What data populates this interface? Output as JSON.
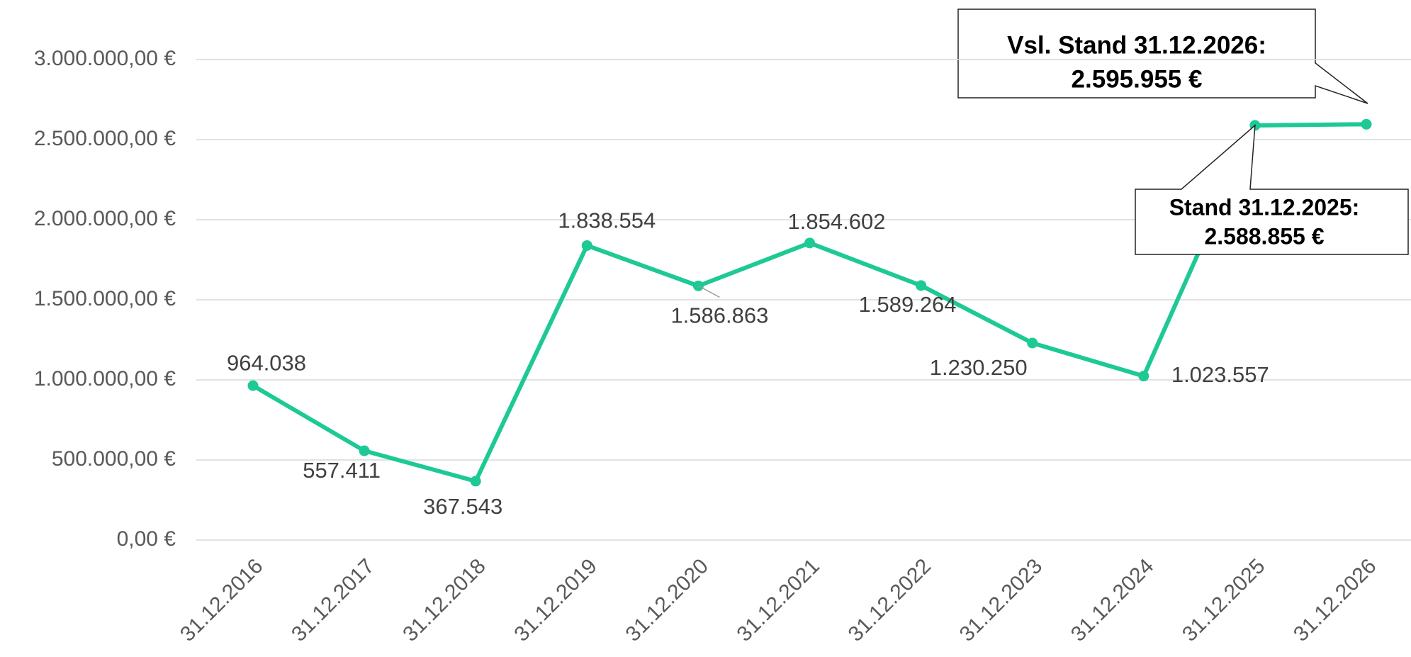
{
  "chart_data": {
    "type": "line",
    "categories": [
      "31.12.2016",
      "31.12.2017",
      "31.12.2018",
      "31.12.2019",
      "31.12.2020",
      "31.12.2021",
      "31.12.2022",
      "31.12.2023",
      "31.12.2024",
      "31.12.2025",
      "31.12.2026"
    ],
    "values": [
      964038,
      557411,
      367543,
      1838554,
      1586863,
      1854602,
      1589264,
      1230250,
      1023557,
      2588855,
      2595955
    ],
    "value_labels": [
      "964.038",
      "557.411",
      "367.543",
      "1.838.554",
      "1.586.863",
      "1.854.602",
      "1.589.264",
      "1.230.250",
      "1.023.557",
      null,
      null
    ],
    "color": "#1dc994",
    "ylim": [
      0,
      3000000
    ],
    "yticks": [
      {
        "value": 0,
        "label": "0,00 €"
      },
      {
        "value": 500000,
        "label": "500.000,00 €"
      },
      {
        "value": 1000000,
        "label": "1.000.000,00 €"
      },
      {
        "value": 1500000,
        "label": "1.500.000,00 €"
      },
      {
        "value": 2000000,
        "label": "2.000.000,00 €"
      },
      {
        "value": 2500000,
        "label": "2.500.000,00 €"
      },
      {
        "value": 3000000,
        "label": "3.000.000,00 €"
      }
    ],
    "grid": true,
    "annotations": [
      {
        "lines": [
          "Vsl. Stand 31.12.2026:",
          "2.595.955 €"
        ]
      },
      {
        "lines": [
          "Stand 31.12.2025:",
          "2.588.855 €"
        ]
      }
    ]
  }
}
